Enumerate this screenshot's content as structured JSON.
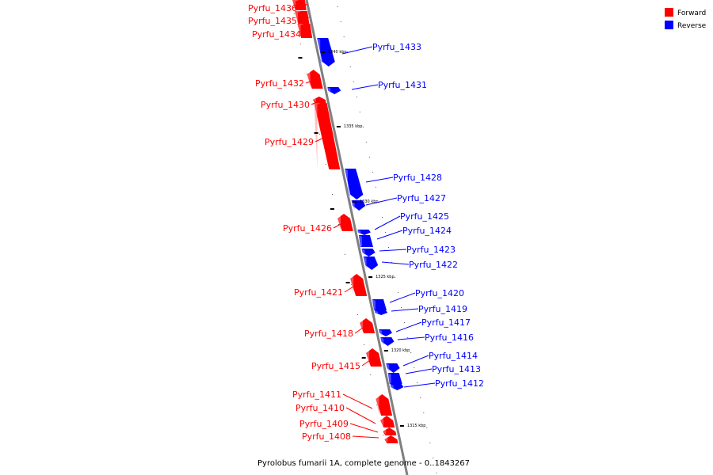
{
  "caption": "Pyrolobus fumarii 1A, complete genome - 0..1843267",
  "legend": [
    {
      "label": "Forward",
      "color": "#ff0000"
    },
    {
      "label": "Reverse",
      "color": "#0000ff"
    }
  ],
  "colors": {
    "forward": "#ff0000",
    "forward_light": "#ff8a8a",
    "reverse": "#0000ff",
    "reverse_light": "#8a8aff",
    "backbone": "#808080"
  },
  "kbp_marks": [
    {
      "label": "1340 kbp"
    },
    {
      "label": "1335 kbp"
    },
    {
      "label": "1330 kbp"
    },
    {
      "label": "1325 kbp"
    },
    {
      "label": "1320 kbp"
    },
    {
      "label": "1315 kbp"
    }
  ],
  "genes": [
    {
      "name": "Pyrfu_1436",
      "strand": "forward"
    },
    {
      "name": "Pyrfu_1435",
      "strand": "forward"
    },
    {
      "name": "Pyrfu_1434",
      "strand": "forward"
    },
    {
      "name": "Pyrfu_1433",
      "strand": "reverse"
    },
    {
      "name": "Pyrfu_1432",
      "strand": "forward"
    },
    {
      "name": "Pyrfu_1431",
      "strand": "reverse"
    },
    {
      "name": "Pyrfu_1430",
      "strand": "forward"
    },
    {
      "name": "Pyrfu_1429",
      "strand": "forward"
    },
    {
      "name": "Pyrfu_1428",
      "strand": "reverse"
    },
    {
      "name": "Pyrfu_1427",
      "strand": "reverse"
    },
    {
      "name": "Pyrfu_1426",
      "strand": "forward"
    },
    {
      "name": "Pyrfu_1425",
      "strand": "reverse"
    },
    {
      "name": "Pyrfu_1424",
      "strand": "reverse"
    },
    {
      "name": "Pyrfu_1423",
      "strand": "reverse"
    },
    {
      "name": "Pyrfu_1422",
      "strand": "reverse"
    },
    {
      "name": "Pyrfu_1421",
      "strand": "forward"
    },
    {
      "name": "Pyrfu_1420",
      "strand": "reverse"
    },
    {
      "name": "Pyrfu_1419",
      "strand": "reverse"
    },
    {
      "name": "Pyrfu_1418",
      "strand": "forward"
    },
    {
      "name": "Pyrfu_1417",
      "strand": "reverse"
    },
    {
      "name": "Pyrfu_1416",
      "strand": "reverse"
    },
    {
      "name": "Pyrfu_1415",
      "strand": "forward"
    },
    {
      "name": "Pyrfu_1414",
      "strand": "reverse"
    },
    {
      "name": "Pyrfu_1413",
      "strand": "reverse"
    },
    {
      "name": "Pyrfu_1412",
      "strand": "reverse"
    },
    {
      "name": "Pyrfu_1411",
      "strand": "forward"
    },
    {
      "name": "Pyrfu_1410",
      "strand": "forward"
    },
    {
      "name": "Pyrfu_1409",
      "strand": "forward"
    },
    {
      "name": "Pyrfu_1408",
      "strand": "forward"
    }
  ]
}
